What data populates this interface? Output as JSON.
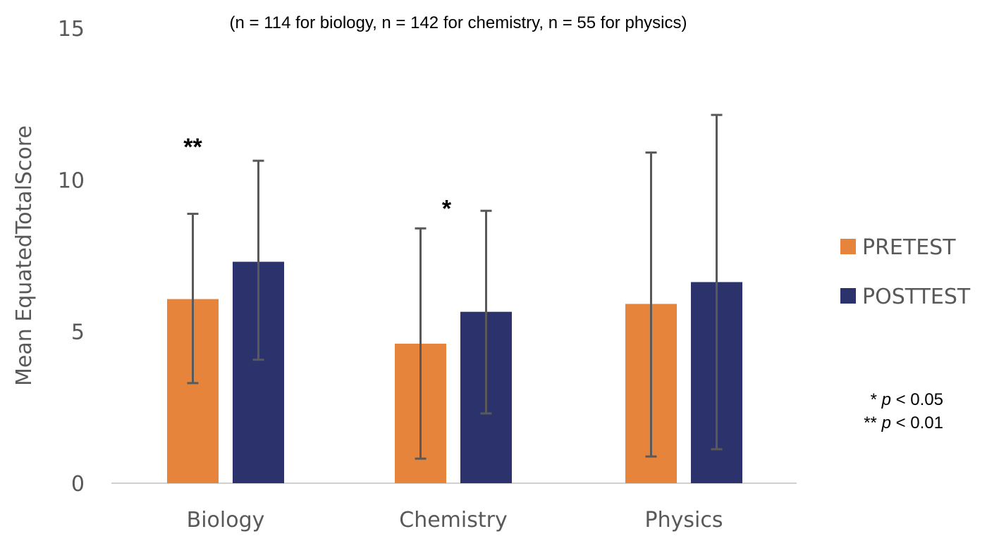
{
  "chart_data": {
    "type": "bar",
    "subtitle": "(n = 114 for biology, n = 142 for chemistry, n = 55 for physics)",
    "ylabel": "Mean EquatedTotalScore",
    "xlabel": "",
    "ylim": [
      0,
      15
    ],
    "yticks": [
      "0",
      "5",
      "10",
      "15"
    ],
    "categories": [
      "Biology",
      "Chemistry",
      "Physics"
    ],
    "series": [
      {
        "name": "PRETEST",
        "color": "#E6843C",
        "values": [
          6.07,
          4.6,
          5.91
        ],
        "error_low": [
          3.3,
          0.81,
          0.88
        ],
        "error_high": [
          8.88,
          8.4,
          10.9
        ]
      },
      {
        "name": "POSTTEST",
        "color": "#2C336C",
        "values": [
          7.3,
          5.65,
          6.63
        ],
        "error_low": [
          4.07,
          2.3,
          1.12
        ],
        "error_high": [
          10.63,
          8.98,
          12.14
        ]
      }
    ],
    "significance": [
      "**",
      "*",
      ""
    ],
    "significance_legend": [
      {
        "stars": "*",
        "p": "p",
        "text": " < 0.05"
      },
      {
        "stars": "**",
        "p": "p",
        "text": " < 0.01"
      }
    ],
    "grid": false,
    "legend_position": "right",
    "errorbar_color": "#595959"
  }
}
